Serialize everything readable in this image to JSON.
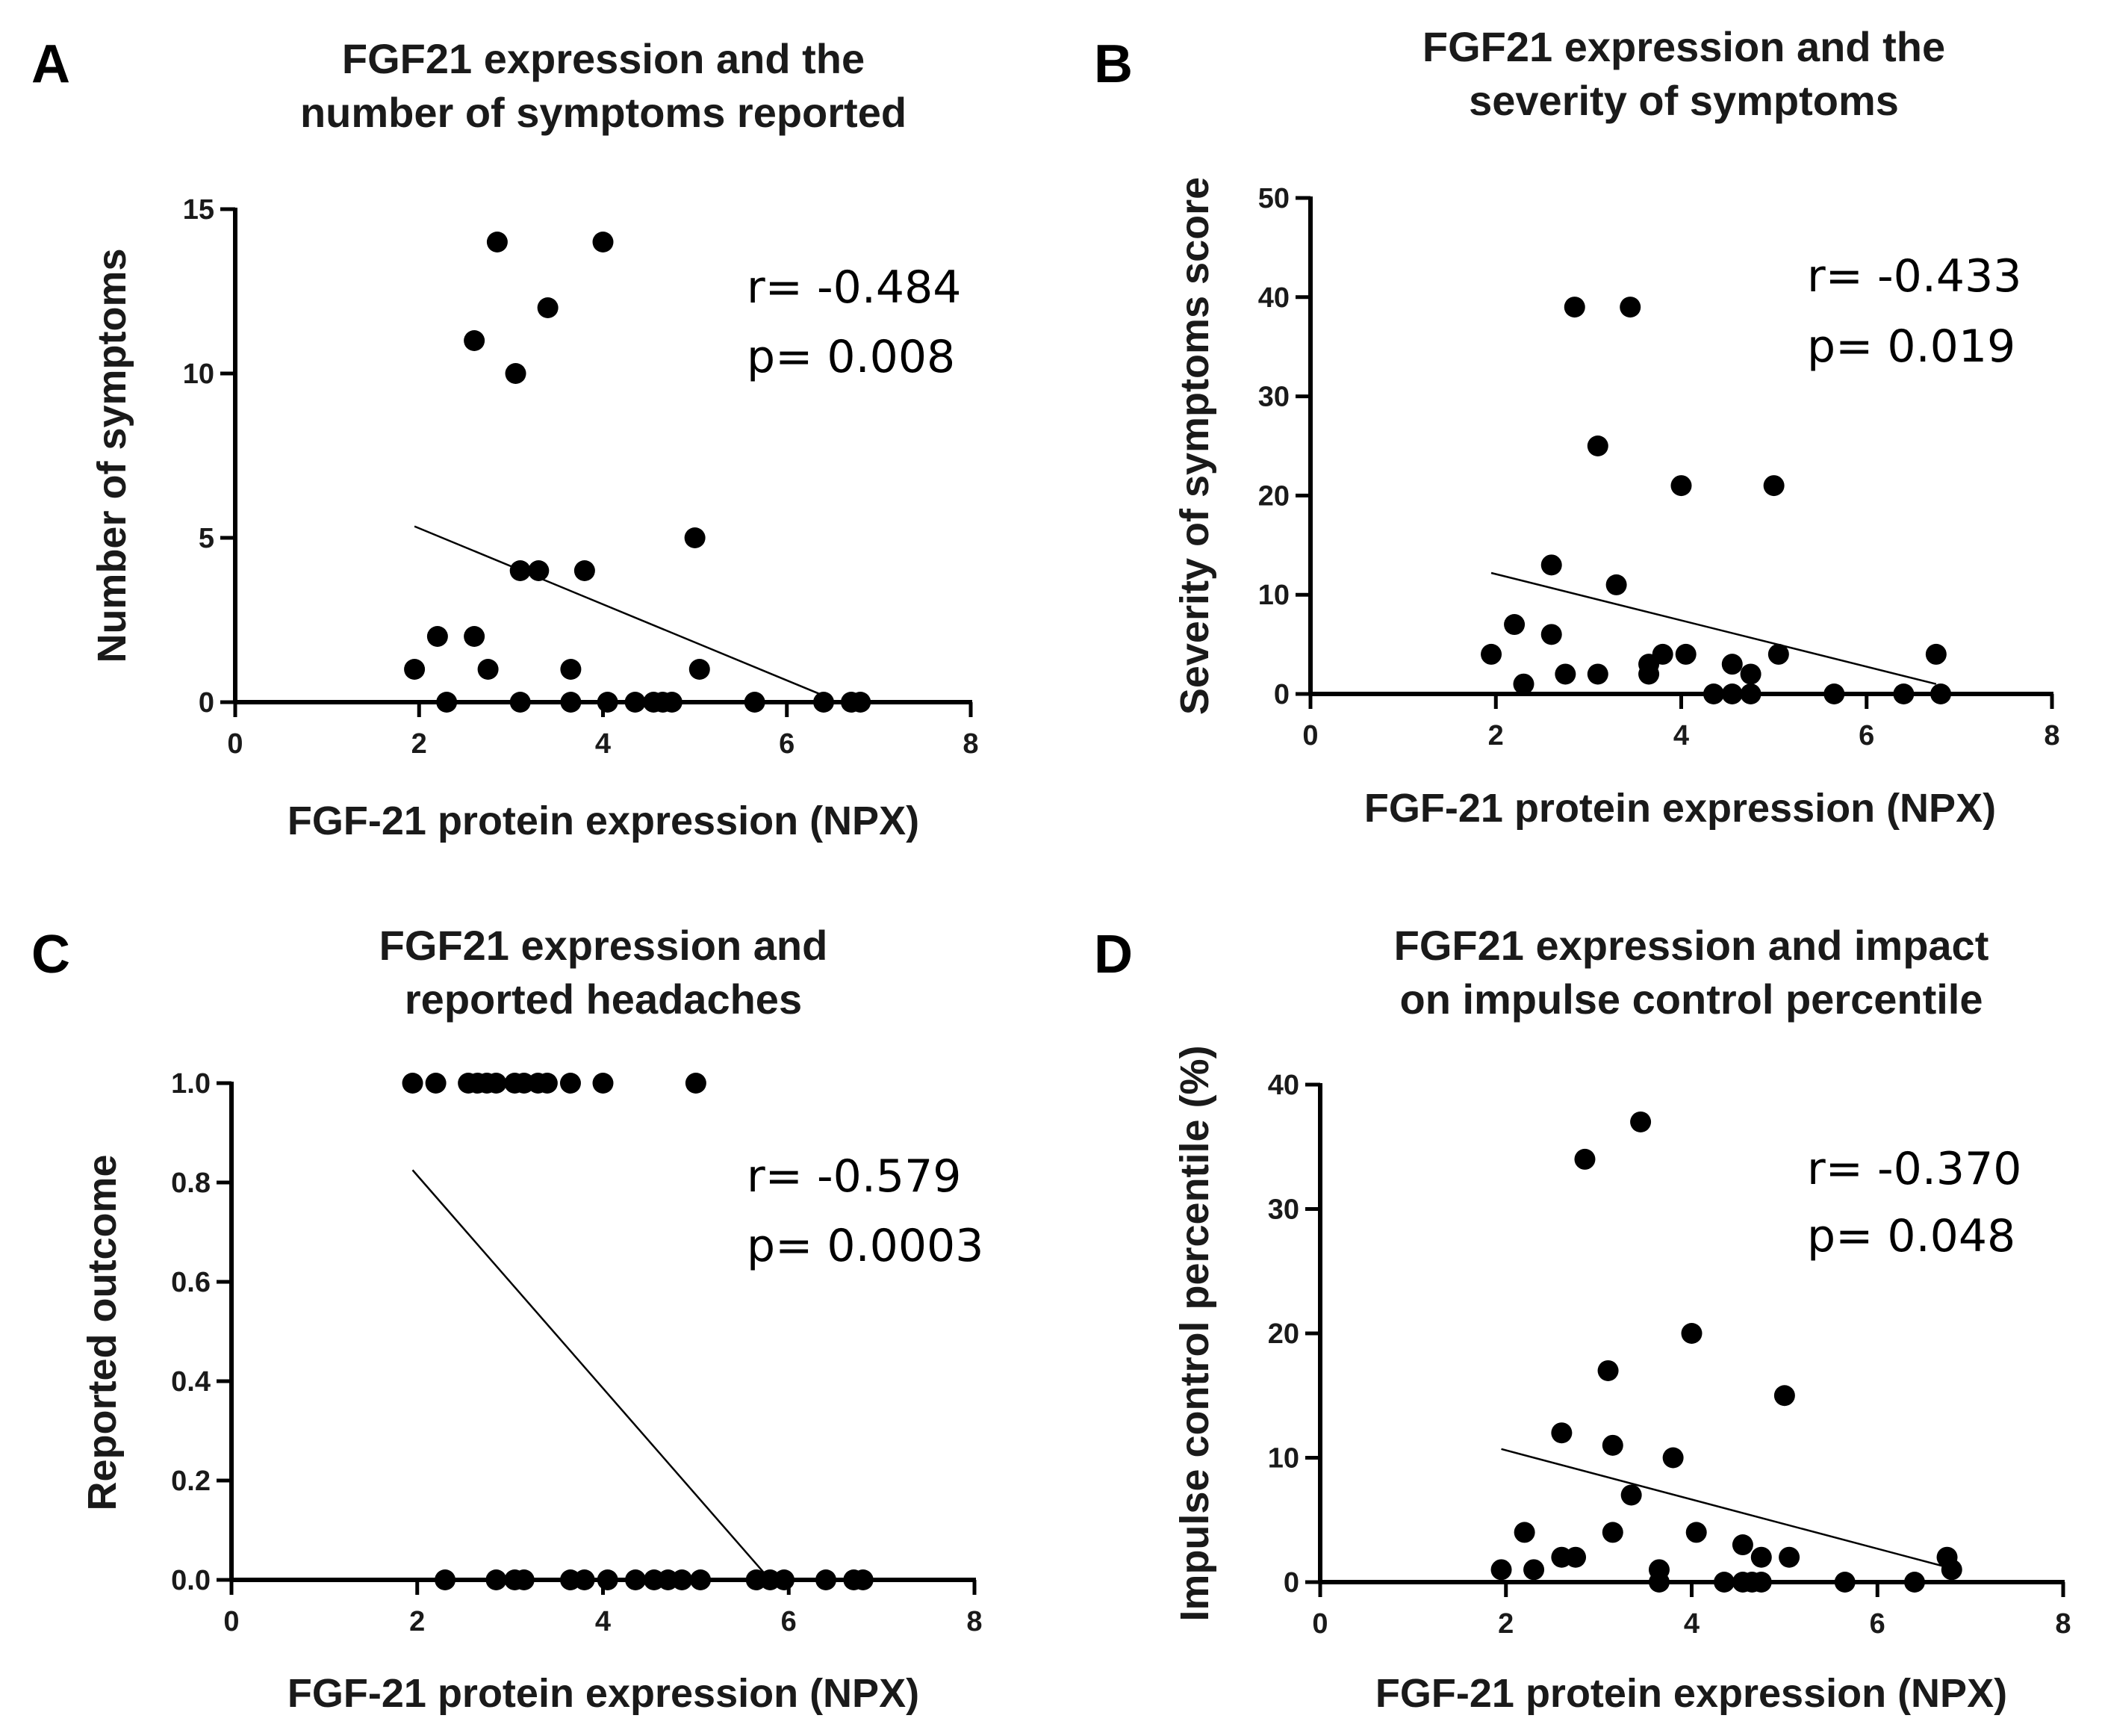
{
  "chart_data": [
    {
      "type": "scatter",
      "panel": "A",
      "title": [
        "FGF21 expression and the",
        "number of symptoms reported"
      ],
      "xlabel": "FGF-21 protein expression (NPX)",
      "ylabel": "Number of symptoms",
      "xlim": [
        0,
        8
      ],
      "ylim": [
        0,
        15
      ],
      "xticks": [
        0,
        2,
        4,
        6,
        8
      ],
      "yticks": [
        0,
        5,
        10,
        15
      ],
      "ytick_labels": [
        "0",
        "5",
        "10",
        "15"
      ],
      "stats": [
        "r= -0.484",
        "p= 0.008"
      ],
      "fit_line": [
        [
          1.95,
          5.35
        ],
        [
          6.4,
          0.2
        ]
      ],
      "points": [
        [
          1.95,
          1
        ],
        [
          2.2,
          2
        ],
        [
          2.3,
          0
        ],
        [
          2.6,
          11
        ],
        [
          2.6,
          2
        ],
        [
          2.75,
          1
        ],
        [
          2.85,
          14
        ],
        [
          3.05,
          10
        ],
        [
          3.1,
          4
        ],
        [
          3.1,
          0
        ],
        [
          3.3,
          4
        ],
        [
          3.4,
          12
        ],
        [
          3.65,
          1
        ],
        [
          3.65,
          0
        ],
        [
          3.8,
          4
        ],
        [
          4.0,
          14
        ],
        [
          4.05,
          0
        ],
        [
          4.35,
          0
        ],
        [
          4.55,
          0
        ],
        [
          4.65,
          0
        ],
        [
          4.75,
          0
        ],
        [
          5.0,
          5
        ],
        [
          5.05,
          1
        ],
        [
          5.65,
          0
        ],
        [
          6.4,
          0
        ],
        [
          6.7,
          0
        ],
        [
          6.8,
          0
        ]
      ]
    },
    {
      "type": "scatter",
      "panel": "B",
      "title": [
        "FGF21 expression and the",
        "severity of symptoms"
      ],
      "xlabel": "FGF-21 protein expression (NPX)",
      "ylabel": "Severity of symptoms score",
      "xlim": [
        0,
        8
      ],
      "ylim": [
        0,
        50
      ],
      "xticks": [
        0,
        2,
        4,
        6,
        8
      ],
      "yticks": [
        0,
        10,
        20,
        30,
        40,
        50
      ],
      "ytick_labels": [
        "0",
        "10",
        "20",
        "30",
        "40",
        "50"
      ],
      "stats": [
        "r= -0.433",
        "p= 0.019"
      ],
      "fit_line": [
        [
          1.95,
          12.2
        ],
        [
          6.75,
          1.0
        ]
      ],
      "points": [
        [
          1.95,
          4
        ],
        [
          2.2,
          7
        ],
        [
          2.3,
          1
        ],
        [
          2.6,
          13
        ],
        [
          2.6,
          6
        ],
        [
          2.75,
          2
        ],
        [
          2.85,
          39
        ],
        [
          3.1,
          25
        ],
        [
          3.1,
          2
        ],
        [
          3.3,
          11
        ],
        [
          3.45,
          39
        ],
        [
          3.65,
          3
        ],
        [
          3.65,
          2
        ],
        [
          3.8,
          4
        ],
        [
          4.0,
          21
        ],
        [
          4.05,
          4
        ],
        [
          4.35,
          0
        ],
        [
          4.55,
          3
        ],
        [
          4.55,
          0
        ],
        [
          4.75,
          2
        ],
        [
          4.75,
          0
        ],
        [
          5.0,
          21
        ],
        [
          5.05,
          4
        ],
        [
          5.65,
          0
        ],
        [
          6.4,
          0
        ],
        [
          6.75,
          4
        ],
        [
          6.8,
          0
        ]
      ]
    },
    {
      "type": "scatter",
      "panel": "C",
      "title": [
        "FGF21 expression and",
        "reported headaches"
      ],
      "xlabel": "FGF-21 protein expression (NPX)",
      "ylabel": "Reported outcome",
      "xlim": [
        0,
        8
      ],
      "ylim": [
        0,
        1
      ],
      "xticks": [
        0,
        2,
        4,
        6,
        8
      ],
      "yticks": [
        0,
        0.2,
        0.4,
        0.6,
        0.8,
        1.0
      ],
      "ytick_labels": [
        "0.0",
        "0.2",
        "0.4",
        "0.6",
        "0.8",
        "1.0"
      ],
      "stats": [
        "r= -0.579",
        "p= 0.0003"
      ],
      "fit_line": [
        [
          1.95,
          0.825
        ],
        [
          5.8,
          0.0
        ]
      ],
      "points": [
        [
          1.95,
          1
        ],
        [
          2.2,
          1
        ],
        [
          2.55,
          1
        ],
        [
          2.65,
          1
        ],
        [
          2.75,
          1
        ],
        [
          2.85,
          1
        ],
        [
          3.05,
          1
        ],
        [
          3.15,
          1
        ],
        [
          3.3,
          1
        ],
        [
          3.4,
          1
        ],
        [
          3.65,
          1
        ],
        [
          4.0,
          1
        ],
        [
          5.0,
          1
        ],
        [
          2.3,
          0
        ],
        [
          2.85,
          0
        ],
        [
          3.05,
          0
        ],
        [
          3.15,
          0
        ],
        [
          3.65,
          0
        ],
        [
          3.8,
          0
        ],
        [
          4.05,
          0
        ],
        [
          4.35,
          0
        ],
        [
          4.55,
          0
        ],
        [
          4.7,
          0
        ],
        [
          4.85,
          0
        ],
        [
          5.05,
          0
        ],
        [
          5.65,
          0
        ],
        [
          5.8,
          0
        ],
        [
          5.95,
          0
        ],
        [
          6.4,
          0
        ],
        [
          6.7,
          0
        ],
        [
          6.8,
          0
        ]
      ]
    },
    {
      "type": "scatter",
      "panel": "D",
      "title": [
        "FGF21 expression and impact",
        "on impulse control percentile"
      ],
      "xlabel": "FGF-21 protein expression (NPX)",
      "ylabel": "Impulse control percentile (%)",
      "xlim": [
        0,
        8
      ],
      "ylim": [
        0,
        40
      ],
      "xticks": [
        0,
        2,
        4,
        6,
        8
      ],
      "yticks": [
        0,
        10,
        20,
        30,
        40
      ],
      "ytick_labels": [
        "0",
        "10",
        "20",
        "30",
        "40"
      ],
      "stats": [
        "r= -0.370",
        "p= 0.048"
      ],
      "fit_line": [
        [
          1.95,
          10.7
        ],
        [
          6.75,
          1.2
        ]
      ],
      "points": [
        [
          1.95,
          1
        ],
        [
          2.2,
          4
        ],
        [
          2.3,
          1
        ],
        [
          2.6,
          12
        ],
        [
          2.6,
          2
        ],
        [
          2.75,
          2
        ],
        [
          2.85,
          34
        ],
        [
          3.1,
          17
        ],
        [
          3.15,
          11
        ],
        [
          3.15,
          4
        ],
        [
          3.35,
          7
        ],
        [
          3.45,
          37
        ],
        [
          3.65,
          1
        ],
        [
          3.65,
          0
        ],
        [
          3.8,
          10
        ],
        [
          4.0,
          20
        ],
        [
          4.05,
          4
        ],
        [
          4.35,
          0
        ],
        [
          4.55,
          3
        ],
        [
          4.55,
          0
        ],
        [
          4.65,
          0
        ],
        [
          4.75,
          2
        ],
        [
          4.75,
          0
        ],
        [
          5.0,
          15
        ],
        [
          5.05,
          2
        ],
        [
          5.65,
          0
        ],
        [
          6.4,
          0
        ],
        [
          6.75,
          2
        ],
        [
          6.8,
          1
        ]
      ]
    }
  ]
}
